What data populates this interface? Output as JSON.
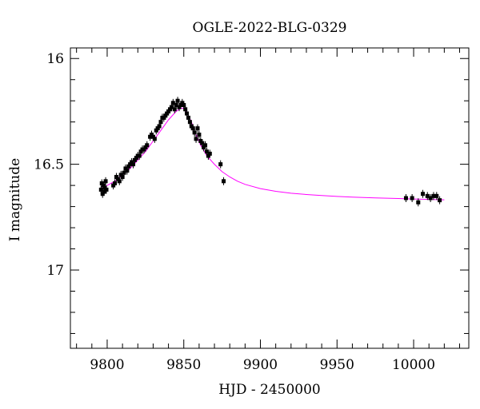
{
  "chart_data": {
    "type": "scatter",
    "title": "OGLE-2022-BLG-0329",
    "xlabel": "HJD - 2450000",
    "ylabel": "I magnitude",
    "xlim": [
      9776,
      10036
    ],
    "ylim": [
      17.37,
      15.95
    ],
    "y_inverted": true,
    "x_major_ticks": [
      9800,
      9850,
      9900,
      9950,
      10000
    ],
    "x_minor_step": 10,
    "y_major_ticks": [
      16,
      16.5,
      17
    ],
    "y_minor_step": 0.1,
    "grid": false,
    "colors": {
      "points": "#000000",
      "model": "#ff00ff",
      "axes": "#000000"
    },
    "series": [
      {
        "type": "scatter",
        "x": [
          9796,
          9796.5,
          9797,
          9797.5,
          9798,
          9798.5,
          9799,
          9799.5,
          9804,
          9805,
          9806,
          9807,
          9808,
          9809,
          9810,
          9811,
          9812,
          9813,
          9814,
          9815,
          9816,
          9817,
          9818,
          9819,
          9820,
          9821,
          9822,
          9823,
          9824,
          9825,
          9826,
          9828,
          9829,
          9830,
          9831,
          9832,
          9833,
          9834,
          9835,
          9836,
          9837,
          9838,
          9839,
          9840,
          9841,
          9842,
          9843,
          9844,
          9845,
          9846,
          9847,
          9848,
          9849,
          9850,
          9851,
          9852,
          9853,
          9854,
          9855,
          9856,
          9857,
          9858,
          9859,
          9860,
          9861,
          9862,
          9863,
          9864,
          9865,
          9866,
          9867,
          9874,
          9876,
          9995,
          9999,
          10003,
          10006,
          10009,
          10011,
          10013,
          10015,
          10017
        ],
        "y": [
          16.62,
          16.59,
          16.64,
          16.6,
          16.63,
          16.61,
          16.58,
          16.62,
          16.6,
          16.59,
          16.56,
          16.57,
          16.58,
          16.55,
          16.56,
          16.54,
          16.52,
          16.53,
          16.51,
          16.5,
          16.49,
          16.5,
          16.48,
          16.47,
          16.46,
          16.46,
          16.44,
          16.43,
          16.43,
          16.42,
          16.41,
          16.37,
          16.36,
          16.37,
          16.38,
          16.34,
          16.33,
          16.32,
          16.3,
          16.28,
          16.28,
          16.27,
          16.26,
          16.25,
          16.24,
          16.23,
          16.21,
          16.24,
          16.22,
          16.2,
          16.23,
          16.22,
          16.21,
          16.22,
          16.24,
          16.26,
          16.28,
          16.3,
          16.32,
          16.33,
          16.35,
          16.38,
          16.33,
          16.36,
          16.39,
          16.4,
          16.42,
          16.41,
          16.44,
          16.46,
          16.45,
          16.5,
          16.58,
          16.66,
          16.66,
          16.68,
          16.64,
          16.65,
          16.66,
          16.65,
          16.65,
          16.67
        ]
      },
      {
        "type": "line",
        "x": [
          9796,
          9800,
          9805,
          9810,
          9815,
          9820,
          9825,
          9830,
          9835,
          9840,
          9845,
          9848,
          9850,
          9852,
          9855,
          9858,
          9861,
          9865,
          9870,
          9875,
          9880,
          9885,
          9890,
          9900,
          9910,
          9920,
          9930,
          9940,
          9950,
          9960,
          9975,
          9990,
          10000,
          10010,
          10020
        ],
        "y": [
          16.615,
          16.6,
          16.58,
          16.55,
          16.52,
          16.48,
          16.44,
          16.39,
          16.34,
          16.29,
          16.25,
          16.235,
          16.235,
          16.255,
          16.3,
          16.36,
          16.41,
          16.46,
          16.5,
          16.535,
          16.56,
          16.58,
          16.595,
          16.615,
          16.628,
          16.637,
          16.643,
          16.648,
          16.652,
          16.655,
          16.659,
          16.662,
          16.664,
          16.666,
          16.668
        ]
      }
    ]
  }
}
